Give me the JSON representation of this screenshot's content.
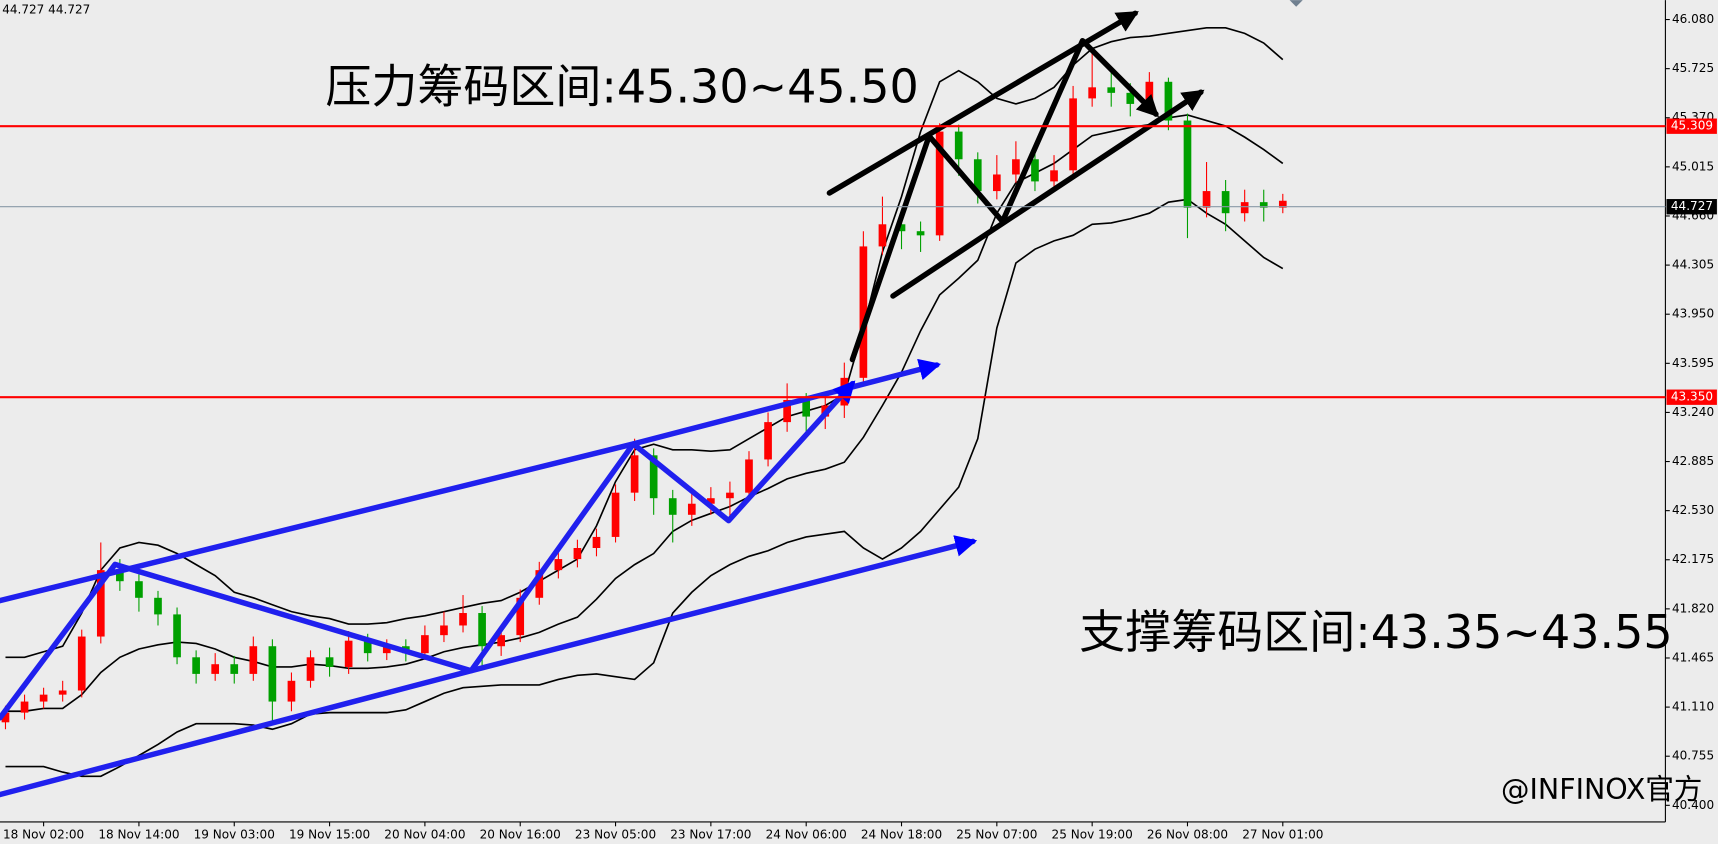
{
  "chart_data": {
    "type": "candlestick",
    "info": "44.727 44.727",
    "annotations": [
      "压力筹码区间:45.30~45.50",
      "支撑筹码区间:43.35~43.55"
    ],
    "watermark": "@INFINOX官方",
    "categories": [
      null,
      null,
      "18 Nov 02:00",
      null,
      null,
      null,
      null,
      "18 Nov 14:00",
      null,
      null,
      null,
      null,
      "19 Nov 03:00",
      null,
      null,
      null,
      null,
      "19 Nov 15:00",
      null,
      null,
      null,
      null,
      "20 Nov 04:00",
      null,
      null,
      null,
      null,
      "20 Nov 16:00",
      null,
      null,
      null,
      null,
      "23 Nov 05:00",
      null,
      null,
      null,
      null,
      "23 Nov 17:00",
      null,
      null,
      null,
      null,
      "24 Nov 06:00",
      null,
      null,
      null,
      null,
      "24 Nov 18:00",
      null,
      null,
      null,
      null,
      "25 Nov 07:00",
      null,
      null,
      null,
      null,
      "25 Nov 19:00",
      null,
      null,
      null,
      null,
      "26 Nov 08:00",
      null,
      null,
      null,
      null,
      "27 Nov 01:00"
    ],
    "open": [
      41.0,
      41.07,
      41.15,
      41.2,
      41.23,
      41.62,
      42.1,
      42.02,
      41.9,
      41.78,
      41.47,
      41.35,
      41.42,
      41.35,
      41.55,
      41.15,
      41.3,
      41.47,
      41.4,
      41.59,
      41.5,
      41.55,
      41.5,
      41.63,
      41.7,
      41.79,
      41.55,
      41.63,
      41.9,
      42.1,
      42.18,
      42.26,
      42.34,
      42.66,
      42.93,
      42.62,
      42.5,
      42.58,
      42.62,
      42.66,
      42.9,
      43.17,
      43.33,
      43.21,
      43.29,
      43.49,
      44.44,
      44.6,
      44.55,
      44.52,
      45.27,
      45.07,
      44.84,
      44.96,
      45.07,
      44.91,
      44.99,
      45.51,
      45.59,
      45.55,
      45.47,
      45.63,
      45.35,
      44.72,
      44.84,
      44.68,
      44.76,
      44.72
    ],
    "high": [
      41.12,
      41.2,
      41.25,
      41.3,
      41.67,
      42.3,
      42.18,
      42.07,
      41.95,
      41.83,
      41.52,
      41.5,
      41.48,
      41.62,
      41.6,
      41.36,
      41.52,
      41.54,
      41.66,
      41.64,
      41.6,
      41.6,
      41.7,
      41.8,
      41.92,
      41.84,
      41.7,
      41.96,
      42.16,
      42.24,
      42.32,
      42.4,
      42.72,
      43.05,
      42.98,
      42.68,
      42.66,
      42.7,
      42.74,
      42.96,
      43.24,
      43.45,
      43.38,
      43.36,
      43.6,
      44.55,
      44.8,
      44.68,
      44.62,
      45.33,
      45.32,
      45.12,
      45.1,
      45.2,
      45.14,
      45.1,
      45.6,
      45.85,
      45.7,
      45.62,
      45.7,
      45.66,
      45.4,
      45.05,
      44.92,
      44.85,
      44.85,
      44.82
    ],
    "low": [
      40.95,
      41.02,
      41.1,
      41.15,
      41.18,
      41.57,
      41.95,
      41.8,
      41.7,
      41.42,
      41.28,
      41.3,
      41.28,
      41.3,
      41.0,
      41.08,
      41.25,
      41.33,
      41.35,
      41.44,
      41.45,
      41.44,
      41.45,
      41.58,
      41.65,
      41.4,
      41.48,
      41.58,
      41.85,
      42.04,
      42.12,
      42.2,
      42.3,
      42.6,
      42.5,
      42.3,
      42.42,
      42.5,
      42.48,
      42.6,
      42.85,
      43.1,
      43.1,
      43.12,
      43.2,
      43.45,
      44.38,
      44.42,
      44.4,
      44.48,
      44.95,
      44.75,
      44.78,
      44.9,
      44.84,
      44.86,
      44.95,
      45.45,
      45.45,
      45.38,
      45.42,
      45.28,
      44.5,
      44.65,
      44.55,
      44.62,
      44.62,
      44.68
    ],
    "close": [
      41.07,
      41.15,
      41.2,
      41.23,
      41.62,
      42.1,
      42.02,
      41.9,
      41.78,
      41.47,
      41.35,
      41.42,
      41.35,
      41.55,
      41.15,
      41.3,
      41.47,
      41.4,
      41.59,
      41.5,
      41.55,
      41.5,
      41.63,
      41.7,
      41.79,
      41.55,
      41.63,
      41.9,
      42.1,
      42.18,
      42.26,
      42.34,
      42.66,
      42.93,
      42.62,
      42.5,
      42.58,
      42.62,
      42.66,
      42.9,
      43.17,
      43.33,
      43.21,
      43.29,
      43.49,
      44.44,
      44.6,
      44.55,
      44.52,
      45.27,
      45.07,
      44.84,
      44.96,
      45.07,
      44.91,
      44.99,
      45.51,
      45.59,
      45.55,
      45.47,
      45.63,
      45.35,
      44.72,
      44.84,
      44.68,
      44.76,
      44.72,
      44.77
    ],
    "up_color": "#ff0000",
    "down_color": "#00a000",
    "bands": [
      {
        "color": "#000000",
        "values": [
          41.47,
          41.47,
          41.51,
          41.55,
          41.79,
          42.1,
          42.26,
          42.3,
          42.28,
          42.22,
          42.14,
          42.06,
          41.94,
          41.9,
          41.85,
          41.8,
          41.77,
          41.75,
          41.71,
          41.71,
          41.72,
          41.75,
          41.77,
          41.8,
          41.83,
          41.86,
          41.88,
          41.94,
          42.02,
          42.1,
          42.18,
          42.42,
          42.74,
          42.97,
          43.01,
          42.97,
          42.97,
          42.96,
          42.97,
          43.05,
          43.13,
          43.21,
          43.25,
          43.29,
          43.37,
          43.85,
          44.4,
          44.8,
          45.27,
          45.63,
          45.71,
          45.63,
          45.51,
          45.47,
          45.51,
          45.59,
          45.75,
          45.87,
          45.92,
          45.95,
          45.96,
          45.98,
          46.0,
          46.02,
          46.02,
          45.98,
          45.91,
          45.79
        ]
      },
      {
        "color": "#000000",
        "values": [
          41.08,
          41.08,
          41.1,
          41.1,
          41.2,
          41.36,
          41.47,
          41.53,
          41.56,
          41.58,
          41.57,
          41.53,
          41.47,
          41.44,
          41.4,
          41.4,
          41.42,
          41.41,
          41.39,
          41.39,
          41.4,
          41.42,
          41.46,
          41.51,
          41.54,
          41.56,
          41.58,
          41.61,
          41.65,
          41.71,
          41.76,
          41.89,
          42.04,
          42.14,
          42.22,
          42.38,
          42.46,
          42.51,
          42.56,
          42.63,
          42.69,
          42.76,
          42.8,
          42.83,
          42.88,
          43.06,
          43.29,
          43.53,
          43.83,
          44.09,
          44.21,
          44.34,
          44.68,
          44.9,
          44.97,
          45.04,
          45.14,
          45.24,
          45.27,
          45.3,
          45.32,
          45.37,
          45.39,
          45.35,
          45.31,
          45.23,
          45.14,
          45.04
        ]
      },
      {
        "color": "#000000",
        "values": [
          40.68,
          40.68,
          40.68,
          40.64,
          40.61,
          40.61,
          40.68,
          40.76,
          40.84,
          40.93,
          40.99,
          40.99,
          40.99,
          40.98,
          40.95,
          40.99,
          41.06,
          41.07,
          41.07,
          41.07,
          41.07,
          41.09,
          41.15,
          41.21,
          41.25,
          41.26,
          41.27,
          41.27,
          41.27,
          41.31,
          41.34,
          41.35,
          41.33,
          41.31,
          41.43,
          41.79,
          41.94,
          42.06,
          42.14,
          42.2,
          42.24,
          42.3,
          42.34,
          42.36,
          42.38,
          42.26,
          42.18,
          42.26,
          42.38,
          42.54,
          42.7,
          43.05,
          43.85,
          44.32,
          44.42,
          44.48,
          44.52,
          44.6,
          44.61,
          44.64,
          44.68,
          44.76,
          44.78,
          44.68,
          44.6,
          44.48,
          44.36,
          44.28
        ]
      }
    ],
    "hlines": [
      {
        "value": 45.309,
        "label": "45.309",
        "color": "#ff0000"
      },
      {
        "value": 43.35,
        "label": "43.350",
        "color": "#ff0000"
      },
      {
        "value": 44.727,
        "label": "44.727",
        "color": "#000000"
      }
    ],
    "ylim": [
      40.28,
      46.22
    ],
    "yticks": [
      {
        "value": 46.08,
        "label": "46.080"
      },
      {
        "value": 45.725,
        "label": "45.725"
      },
      {
        "value": 45.37,
        "label": "45.370"
      },
      {
        "value": 45.015,
        "label": "45.015"
      },
      {
        "value": 44.66,
        "label": "44.660"
      },
      {
        "value": 44.305,
        "label": "44.305"
      },
      {
        "value": 43.95,
        "label": "43.950"
      },
      {
        "value": 43.595,
        "label": "43.595"
      },
      {
        "value": 43.24,
        "label": "43.240"
      },
      {
        "value": 42.885,
        "label": "42.885"
      },
      {
        "value": 42.53,
        "label": "42.530"
      },
      {
        "value": 42.175,
        "label": "42.175"
      },
      {
        "value": 41.82,
        "label": "41.820"
      },
      {
        "value": 41.465,
        "label": "41.465"
      },
      {
        "value": 41.11,
        "label": "41.110"
      },
      {
        "value": 40.755,
        "label": "40.755"
      },
      {
        "value": 40.4,
        "label": "40.400"
      }
    ],
    "grid": false
  }
}
